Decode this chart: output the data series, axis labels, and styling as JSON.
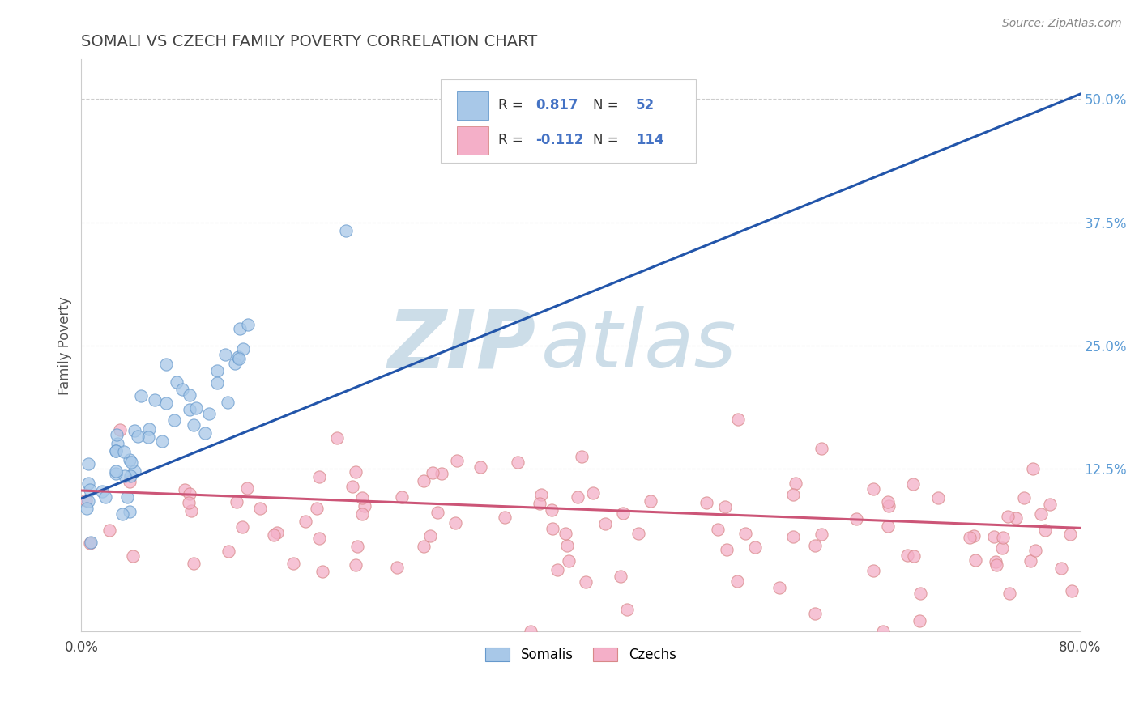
{
  "title": "SOMALI VS CZECH FAMILY POVERTY CORRELATION CHART",
  "source_text": "Source: ZipAtlas.com",
  "ylabel": "Family Poverty",
  "xlim": [
    0.0,
    0.8
  ],
  "ylim": [
    -0.04,
    0.54
  ],
  "xticks": [
    0.0,
    0.1,
    0.2,
    0.3,
    0.4,
    0.5,
    0.6,
    0.7,
    0.8
  ],
  "yticks": [
    0.125,
    0.25,
    0.375,
    0.5
  ],
  "yticklabels": [
    "12.5%",
    "25.0%",
    "37.5%",
    "50.0%"
  ],
  "somali_face_color": "#a8c8e8",
  "somali_edge_color": "#6699cc",
  "czech_face_color": "#f4afc8",
  "czech_edge_color": "#d88888",
  "somali_line_color": "#2255aa",
  "czech_line_color": "#cc5577",
  "legend_R_color": "#4472c4",
  "grid_color": "#cccccc",
  "title_color": "#444444",
  "ytick_color": "#5b9bd5",
  "watermark_zip": "ZIP",
  "watermark_atlas": "atlas",
  "watermark_color": "#ccdde8",
  "somali_line_x": [
    0.0,
    0.8
  ],
  "somali_line_y": [
    0.095,
    0.505
  ],
  "czech_line_x": [
    0.0,
    0.8
  ],
  "czech_line_y": [
    0.103,
    0.065
  ],
  "R_somali": "0.817",
  "N_somali": "52",
  "R_czech": "-0.112",
  "N_czech": "114",
  "legend_label_1": "Somalis",
  "legend_label_2": "Czechs"
}
